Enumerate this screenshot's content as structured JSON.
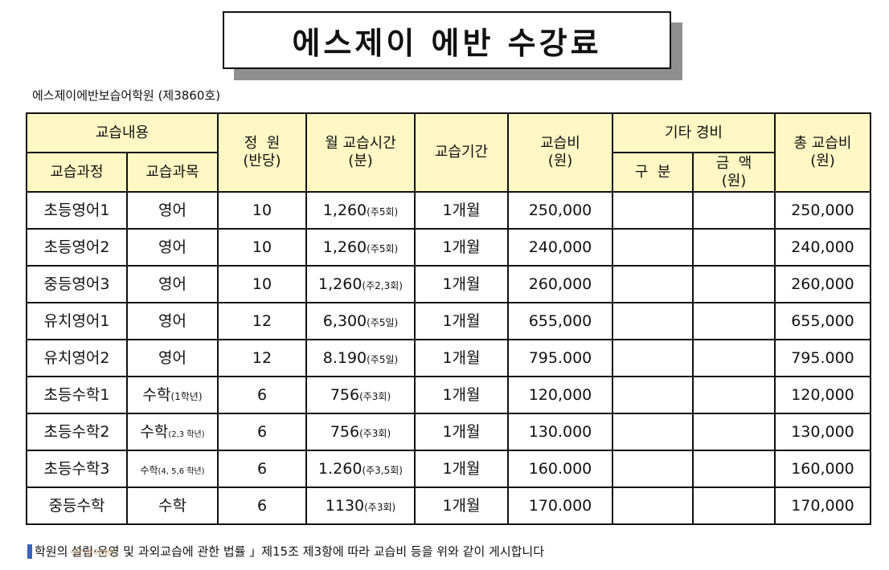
{
  "title": "에스제이 에반 수강료",
  "subtitle": "에스제이에반보습어학원 (제3860호)",
  "headers": {
    "content_group": "교습내용",
    "course": "교습과정",
    "subject": "교습과목",
    "capacity": "정  원",
    "capacity_sub": "(반당)",
    "monthly_time": "월 교습시간",
    "monthly_time_sub": "(분)",
    "period": "교습기간",
    "fee": "교습비",
    "fee_sub": "(원)",
    "other_group": "기타 경비",
    "other_type": "구  분",
    "other_amount": "금  액",
    "other_amount_sub": "(원)",
    "total": "총 교습비",
    "total_sub": "(원)"
  },
  "rows": [
    {
      "course": "초등영어1",
      "subject": "영어",
      "subject_note": "",
      "capacity": "10",
      "time": "1,260",
      "time_note": "(주5회)",
      "period": "1개월",
      "fee": "250,000",
      "total": "250,000"
    },
    {
      "course": "초등영어2",
      "subject": "영어",
      "subject_note": "",
      "capacity": "10",
      "time": "1,260",
      "time_note": "(주5회)",
      "period": "1개월",
      "fee": "240,000",
      "total": "240,000"
    },
    {
      "course": "중등영어3",
      "subject": "영어",
      "subject_note": "",
      "capacity": "10",
      "time": "1,260",
      "time_note": "(주2,3회)",
      "period": "1개월",
      "fee": "260,000",
      "total": "260,000"
    },
    {
      "course": "유치영어1",
      "subject": "영어",
      "subject_note": "",
      "capacity": "12",
      "time": "6,300",
      "time_note": "(주5일)",
      "period": "1개월",
      "fee": "655,000",
      "total": "655,000"
    },
    {
      "course": "유치영어2",
      "subject": "영어",
      "subject_note": "",
      "capacity": "12",
      "time": "8.190",
      "time_note": "(주5일)",
      "period": "1개월",
      "fee": "795.000",
      "total": "795.000"
    },
    {
      "course": "초등수학1",
      "subject": "수학",
      "subject_note": "(1학년)",
      "capacity": "6",
      "time": "756",
      "time_note": "(주3회)",
      "period": "1개월",
      "fee": "120,000",
      "total": "120,000"
    },
    {
      "course": "초등수학2",
      "subject": "수학",
      "subject_note": "(2,3 학년)",
      "capacity": "6",
      "time": "756",
      "time_note": "(주3회)",
      "period": "1개월",
      "fee": "130.000",
      "total": "130,000"
    },
    {
      "course": "초등수학3",
      "subject": "수학",
      "subject_note": "(4, 5,6 학년)",
      "capacity": "6",
      "time": "1.260",
      "time_note": "(주3,5회)",
      "period": "1개월",
      "fee": "160.000",
      "total": "160,000"
    },
    {
      "course": "중등수학",
      "subject": "수학",
      "subject_note": "",
      "capacity": "6",
      "time": "1130",
      "time_note": "(주3회)",
      "period": "1개월",
      "fee": "170.000",
      "total": "170,000"
    }
  ],
  "note": {
    "part1": "학원의",
    "part2": "설립·운영",
    "part3": " 및 과외교습에 관한 법률 」제15조 제3항에 따라 교습비 등을 위와 같이 게시합니다",
    "stamp": "에스제이에반"
  },
  "colors": {
    "header_bg": "#fff8c4",
    "note_bar": "#3c63b8",
    "shadow": "#8f8f8f"
  }
}
